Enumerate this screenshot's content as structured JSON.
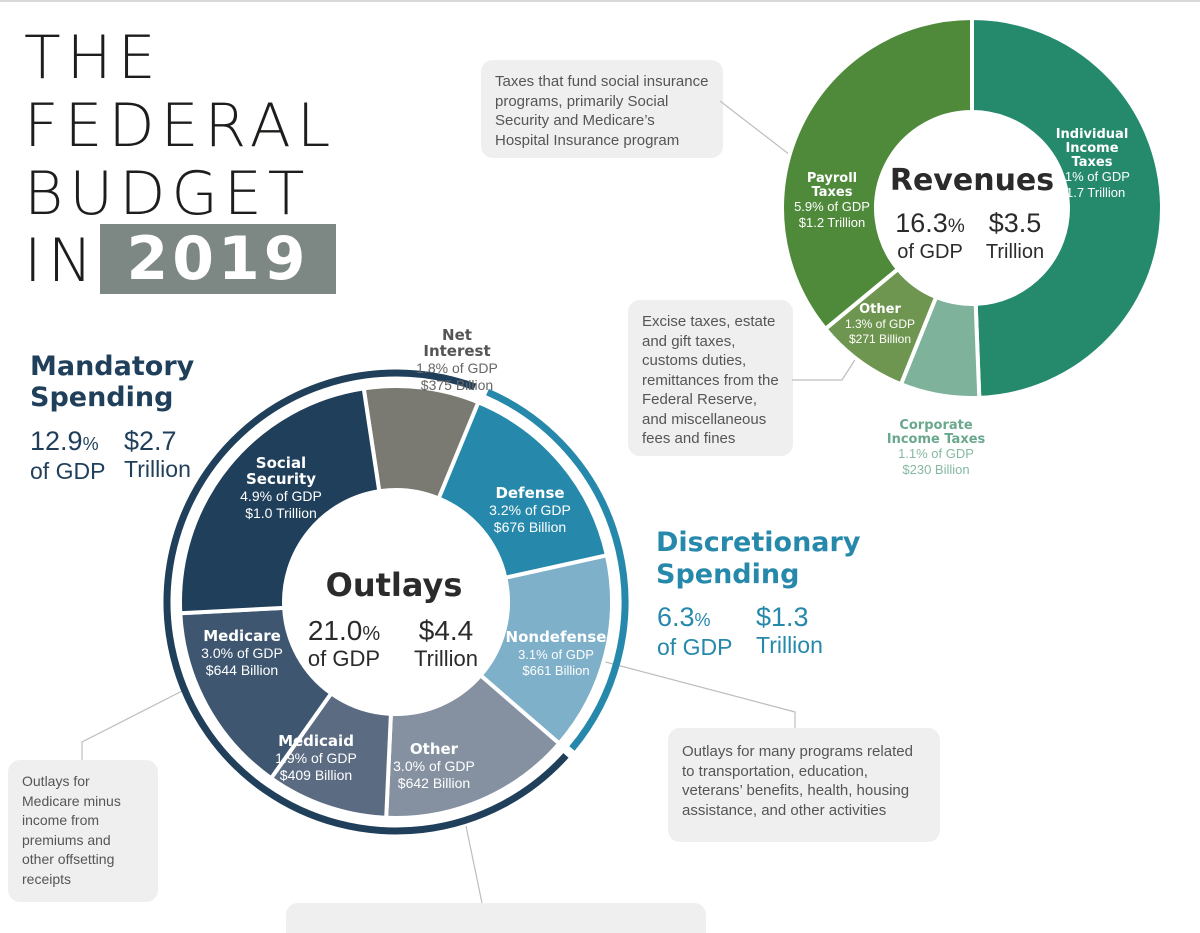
{
  "title": {
    "line1": "THE",
    "line2": "FEDERAL",
    "line3": "BUDGET",
    "line4": "IN",
    "year": "2019"
  },
  "mandatory": {
    "label1": "Mandatory",
    "label2": "Spending",
    "pct": "12.9",
    "pct_sign": "%",
    "pct_unit": "of GDP",
    "amount": "$2.7",
    "amount_unit": "Trillion"
  },
  "discretionary": {
    "label1": "Discretionary",
    "label2": "Spending",
    "pct": "6.3",
    "pct_sign": "%",
    "pct_unit": "of GDP",
    "amount": "$1.3",
    "amount_unit": "Trillion"
  },
  "callouts": {
    "payroll": [
      "Taxes that fund social insurance",
      "programs, primarily Social",
      "Security and Medicare’s",
      "Hospital Insurance program"
    ],
    "excise": [
      "Excise taxes, estate",
      "and gift taxes,",
      "customs duties,",
      "remittances from the",
      "Federal Reserve,",
      "and miscellaneous",
      "fees and fines"
    ],
    "nondefense": [
      "Outlays for many programs related",
      "to transportation, education,",
      "veterans’ benefits, health, housing",
      "assistance, and other activities"
    ],
    "medicare": [
      "Outlays for",
      "Medicare minus",
      "income from",
      "premiums and",
      "other offsetting",
      "receipts"
    ]
  },
  "colors": {
    "social_security": "#1f3f5a",
    "medicare": "#3e5670",
    "medicaid": "#5b6b82",
    "other_mandatory": "#8591a1",
    "net_interest": "#7a7a72",
    "defense": "#2689ab",
    "nondefense": "#7eb0c9",
    "individual": "#258a6b",
    "payroll": "#4f8a3b",
    "other_rev": "#6f9650",
    "corporate": "#7eb29a",
    "mandatory_title": "#1f3f5a",
    "discretionary_title": "#2689ab",
    "corporate_label": "#6aa88e"
  },
  "chart_data": [
    {
      "type": "pie",
      "title": "Outlays",
      "center": {
        "pct": "21.0",
        "pct_sign": "%",
        "pct_unit": "of GDP",
        "amount": "$4.4",
        "amount_unit": "Trillion"
      },
      "slices": [
        {
          "key": "net_interest",
          "name": [
            "Net",
            "Interest"
          ],
          "pct_gdp": 1.8,
          "pct_label": "1.8% of GDP",
          "amount_label": "$375 Billion",
          "color": "#7a7a72"
        },
        {
          "key": "defense",
          "name": [
            "Defense"
          ],
          "pct_gdp": 3.2,
          "pct_label": "3.2% of GDP",
          "amount_label": "$676 Billion",
          "color": "#2689ab"
        },
        {
          "key": "nondefense",
          "name": [
            "Nondefense"
          ],
          "pct_gdp": 3.1,
          "pct_label": "3.1% of GDP",
          "amount_label": "$661 Billion",
          "color": "#7eb0c9"
        },
        {
          "key": "other_mandatory",
          "name": [
            "Other"
          ],
          "pct_gdp": 3.0,
          "pct_label": "3.0% of GDP",
          "amount_label": "$642 Billion",
          "color": "#8591a1"
        },
        {
          "key": "medicaid",
          "name": [
            "Medicaid"
          ],
          "pct_gdp": 1.9,
          "pct_label": "1.9% of GDP",
          "amount_label": "$409 Billion",
          "color": "#5b6b82"
        },
        {
          "key": "medicare",
          "name": [
            "Medicare"
          ],
          "pct_gdp": 3.0,
          "pct_label": "3.0% of GDP",
          "amount_label": "$644 Billion",
          "color": "#3e5670"
        },
        {
          "key": "social_security",
          "name": [
            "Social",
            "Security"
          ],
          "pct_gdp": 4.9,
          "pct_label": "4.9% of GDP",
          "amount_label": "$1.0 Trillion",
          "color": "#1f3f5a"
        }
      ]
    },
    {
      "type": "pie",
      "title": "Revenues",
      "center": {
        "pct": "16.3",
        "pct_sign": "%",
        "pct_unit": "of GDP",
        "amount": "$3.5",
        "amount_unit": "Trillion"
      },
      "slices": [
        {
          "key": "individual",
          "name": [
            "Individual",
            "Income",
            "Taxes"
          ],
          "pct_gdp": 8.1,
          "pct_label": "8.1% of GDP",
          "amount_label": "$1.7 Trillion",
          "color": "#258a6b"
        },
        {
          "key": "corporate",
          "name": [
            "Corporate",
            "Income Taxes"
          ],
          "pct_gdp": 1.1,
          "pct_label": "1.1% of GDP",
          "amount_label": "$230 Billion",
          "color": "#7eb29a"
        },
        {
          "key": "other_rev",
          "name": [
            "Other"
          ],
          "pct_gdp": 1.3,
          "pct_label": "1.3% of GDP",
          "amount_label": "$271 Billion",
          "color": "#6f9650"
        },
        {
          "key": "payroll",
          "name": [
            "Payroll",
            "Taxes"
          ],
          "pct_gdp": 5.9,
          "pct_label": "5.9% of GDP",
          "amount_label": "$1.2 Trillion",
          "color": "#4f8a3b"
        }
      ]
    }
  ]
}
